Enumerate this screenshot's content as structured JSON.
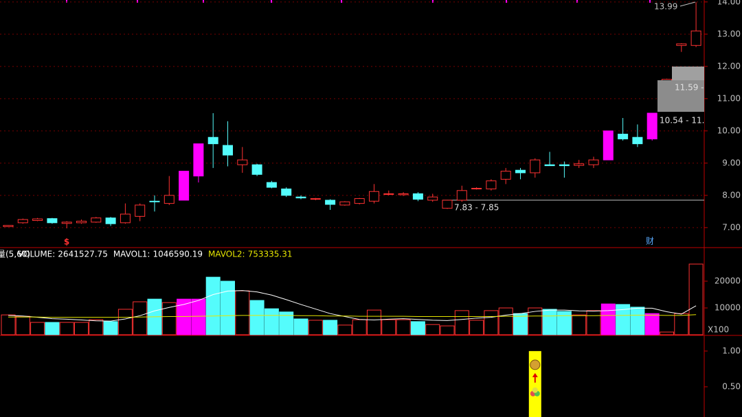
{
  "chart_data": [
    {
      "type": "candlestick",
      "open": [
        7.03,
        7.15,
        7.22,
        7.28,
        7.13,
        7.15,
        7.17,
        7.3,
        7.15,
        7.35,
        7.82,
        7.75,
        7.85,
        8.6,
        9.8,
        9.55,
        8.95,
        8.95,
        8.4,
        8.2,
        7.95,
        7.88,
        7.85,
        7.7,
        7.75,
        7.82,
        8.03,
        8.02,
        8.05,
        7.85,
        7.6,
        7.85,
        8.2,
        8.2,
        8.5,
        8.78,
        8.7,
        8.95,
        8.95,
        8.93,
        8.95,
        9.1,
        9.9,
        9.8,
        9.75,
        11.55,
        12.65,
        12.65
      ],
      "high": [
        7.08,
        7.28,
        7.3,
        7.3,
        7.2,
        7.25,
        7.33,
        7.33,
        7.75,
        7.75,
        8.0,
        8.6,
        8.75,
        9.6,
        10.55,
        10.3,
        9.5,
        8.98,
        8.45,
        8.25,
        8.0,
        7.92,
        7.88,
        7.82,
        7.92,
        8.35,
        8.15,
        8.1,
        8.1,
        8.05,
        7.86,
        8.3,
        8.25,
        8.5,
        8.85,
        8.85,
        9.15,
        9.35,
        9.05,
        9.1,
        9.2,
        10.0,
        10.4,
        10.2,
        10.55,
        11.62,
        12.72,
        13.99
      ],
      "low": [
        7.02,
        7.12,
        7.2,
        7.12,
        6.98,
        7.12,
        7.15,
        7.05,
        7.12,
        7.2,
        7.5,
        7.7,
        7.85,
        8.4,
        8.85,
        8.9,
        8.7,
        8.6,
        8.22,
        7.95,
        7.88,
        7.85,
        7.55,
        7.68,
        7.72,
        7.75,
        8.0,
        7.98,
        7.82,
        7.8,
        7.58,
        7.8,
        8.18,
        8.15,
        8.35,
        8.5,
        8.55,
        8.92,
        8.55,
        8.85,
        8.85,
        9.1,
        9.7,
        9.5,
        9.7,
        11.5,
        12.45,
        12.6
      ],
      "close": [
        7.07,
        7.25,
        7.27,
        7.15,
        7.17,
        7.2,
        7.3,
        7.12,
        7.42,
        7.7,
        7.8,
        8.0,
        8.75,
        9.6,
        9.6,
        9.25,
        9.1,
        8.65,
        8.25,
        8.0,
        7.92,
        7.9,
        7.72,
        7.8,
        7.9,
        8.12,
        8.05,
        8.05,
        7.88,
        7.95,
        7.85,
        8.15,
        8.22,
        8.45,
        8.75,
        8.7,
        9.1,
        8.92,
        8.92,
        8.98,
        9.1,
        10.0,
        9.75,
        9.6,
        10.55,
        11.6,
        12.7,
        13.1
      ],
      "colors": [
        "#ff3232",
        "#ff3232",
        "#ff3232",
        "#54fcfc",
        "#ff3232",
        "#ff3232",
        "#ff3232",
        "#54fcfc",
        "#ff3232",
        "#ff3232",
        "#54fcfc",
        "#ff3232",
        "#ff00ff",
        "#ff00ff",
        "#54fcfc",
        "#54fcfc",
        "#ff3232",
        "#54fcfc",
        "#54fcfc",
        "#54fcfc",
        "#54fcfc",
        "#ff3232",
        "#54fcfc",
        "#ff3232",
        "#ff3232",
        "#ff3232",
        "#ff3232",
        "#ff3232",
        "#54fcfc",
        "#ff3232",
        "#ff3232",
        "#ff3232",
        "#ff3232",
        "#ff3232",
        "#ff3232",
        "#54fcfc",
        "#ff3232",
        "#54fcfc",
        "#54fcfc",
        "#ff3232",
        "#ff3232",
        "#ff00ff",
        "#54fcfc",
        "#54fcfc",
        "#ff00ff",
        "#ff3232",
        "#ff3232",
        "#ff3232"
      ],
      "ylim": [
        6.38,
        14.06
      ],
      "yticks": [
        {
          "value": 7,
          "label": "7.00"
        },
        {
          "value": 8,
          "label": "8.00"
        },
        {
          "value": 9,
          "label": "9.00"
        },
        {
          "value": 10,
          "label": "10.00"
        },
        {
          "value": 11,
          "label": "11.00"
        },
        {
          "value": 12,
          "label": "12.00"
        },
        {
          "value": 13,
          "label": "13.00"
        },
        {
          "value": 14,
          "label": "14.00"
        }
      ],
      "grid": true,
      "high_label": "13.99",
      "tooltip_top": "11.59 -",
      "tooltip_bottom": "10.54 - 11.",
      "line_label": "7.83 - 7.85",
      "marker_left": "$",
      "marker_right": "财"
    },
    {
      "type": "volume",
      "indicator": "量(5,60)",
      "header": [
        {
          "name": "VOLUME:",
          "value": 2641527.75
        },
        {
          "name": "MAVOL1:",
          "value": 1046590.19
        },
        {
          "name": "MAVOL2:",
          "value": 753335.31
        }
      ],
      "values": [
        7400,
        6900,
        4600,
        4600,
        4600,
        4600,
        5600,
        4900,
        9500,
        12300,
        13300,
        12000,
        13300,
        13300,
        21500,
        20000,
        16400,
        12800,
        9700,
        8500,
        5900,
        5400,
        5400,
        3600,
        5600,
        9200,
        5600,
        5600,
        4900,
        3800,
        3300,
        9000,
        5400,
        9000,
        10000,
        7900,
        10000,
        9500,
        8700,
        7400,
        9000,
        11500,
        11300,
        10300,
        7900,
        1000,
        7900,
        26400
      ],
      "series": [
        {
          "color": "#ffffff",
          "values": [
            7200,
            7000,
            6500,
            6000,
            5800,
            5500,
            5200,
            5100,
            5900,
            7100,
            8900,
            10200,
            11300,
            12800,
            15000,
            16300,
            16500,
            16000,
            14800,
            13100,
            11300,
            9600,
            7900,
            6800,
            5700,
            5500,
            5800,
            6000,
            5700,
            5400,
            5300,
            5700,
            6200,
            6500,
            7300,
            7900,
            8700,
            9200,
            9200,
            8900,
            8800,
            9000,
            9400,
            9900,
            9900,
            8600,
            7700,
            10800
          ]
        },
        {
          "color": "#e6e600",
          "values": [
            6600,
            6600,
            6600,
            6500,
            6500,
            6500,
            6500,
            6500,
            6500,
            6600,
            6700,
            6800,
            6800,
            6900,
            7000,
            7100,
            7200,
            7200,
            7200,
            7200,
            7100,
            7100,
            7000,
            7000,
            6900,
            6900,
            6900,
            6900,
            6800,
            6800,
            6800,
            6800,
            6800,
            6800,
            6900,
            6900,
            7000,
            7000,
            7100,
            7100,
            7100,
            7200,
            7200,
            7300,
            7300,
            7200,
            7200,
            7500
          ]
        }
      ],
      "ylim": [
        0,
        32300
      ],
      "yticks": [
        10000,
        20000
      ],
      "unit": "X100"
    },
    {
      "type": "signal",
      "values": [
        null,
        null,
        null,
        null,
        null,
        null,
        null,
        null,
        null,
        null,
        null,
        null,
        null,
        null,
        null,
        null,
        null,
        null,
        null,
        null,
        null,
        null,
        null,
        null,
        null,
        null,
        null,
        null,
        null,
        null,
        null,
        null,
        null,
        null,
        null,
        null,
        1,
        null,
        null,
        null,
        null,
        null,
        null,
        null,
        null,
        null,
        null,
        null
      ],
      "color": "#ffff00",
      "ylim": [
        0.077,
        1.21
      ],
      "yticks": [
        {
          "value": 0.5,
          "label": "0.50"
        },
        {
          "value": 1,
          "label": "1.00"
        }
      ]
    }
  ]
}
